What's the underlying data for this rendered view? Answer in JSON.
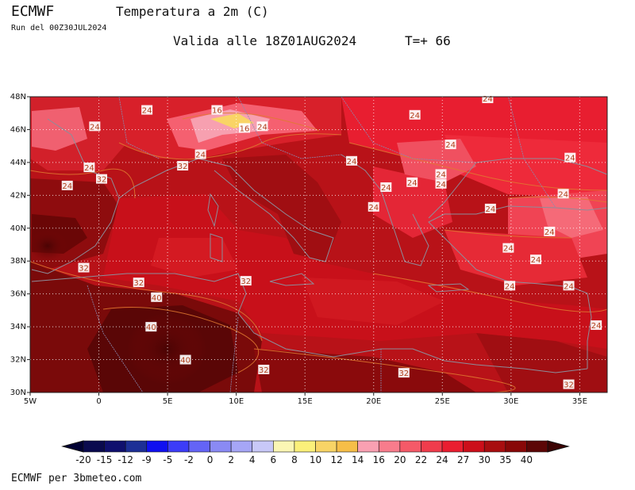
{
  "header": {
    "model": "ECMWF",
    "title": "Temperatura a 2m (C)",
    "run": "Run del 00Z30JUL2024",
    "valid": "Valida alle 18Z01AUG2024",
    "step": "T=+ 66"
  },
  "credit": "ECMWF per 3bmeteo.com",
  "map": {
    "lat_labels": [
      "48N",
      "46N",
      "44N",
      "42N",
      "40N",
      "38N",
      "36N",
      "34N",
      "32N",
      "30N"
    ],
    "lon_labels": [
      "5W",
      "0",
      "5E",
      "10E",
      "15E",
      "20E",
      "25E",
      "30E",
      "35E"
    ],
    "lat_values": [
      48,
      46,
      44,
      42,
      40,
      38,
      36,
      34,
      32,
      30
    ],
    "lon_values": [
      -5,
      0,
      5,
      10,
      15,
      20,
      25,
      30,
      35
    ],
    "extent": {
      "lon_min": -5,
      "lon_max": 37,
      "lat_min": 30,
      "lat_max": 48
    },
    "grid_lines": "dotted",
    "contour_labels": [
      {
        "text": "24",
        "lon": -0.3,
        "lat": 46.2
      },
      {
        "text": "24",
        "lon": 3.5,
        "lat": 47.2
      },
      {
        "text": "16",
        "lon": 8.6,
        "lat": 47.2
      },
      {
        "text": "16",
        "lon": 10.6,
        "lat": 46.1
      },
      {
        "text": "24",
        "lon": 11.9,
        "lat": 46.2
      },
      {
        "text": "24",
        "lon": 7.4,
        "lat": 44.5
      },
      {
        "text": "32",
        "lon": 6.1,
        "lat": 43.8
      },
      {
        "text": "24",
        "lon": -0.7,
        "lat": 43.7
      },
      {
        "text": "32",
        "lon": 0.2,
        "lat": 43.0
      },
      {
        "text": "24",
        "lon": -2.3,
        "lat": 42.6
      },
      {
        "text": "24",
        "lon": 23.0,
        "lat": 46.9
      },
      {
        "text": "24",
        "lon": 28.3,
        "lat": 47.9
      },
      {
        "text": "24",
        "lon": 25.6,
        "lat": 45.1
      },
      {
        "text": "24",
        "lon": 18.4,
        "lat": 44.1
      },
      {
        "text": "24",
        "lon": 34.3,
        "lat": 44.3
      },
      {
        "text": "24",
        "lon": 24.9,
        "lat": 43.3
      },
      {
        "text": "24",
        "lon": 24.9,
        "lat": 42.7
      },
      {
        "text": "24",
        "lon": 22.8,
        "lat": 42.8
      },
      {
        "text": "24",
        "lon": 20.9,
        "lat": 42.5
      },
      {
        "text": "24",
        "lon": 33.8,
        "lat": 42.1
      },
      {
        "text": "24",
        "lon": 20.0,
        "lat": 41.3
      },
      {
        "text": "24",
        "lon": 28.5,
        "lat": 41.2
      },
      {
        "text": "24",
        "lon": 32.8,
        "lat": 39.8
      },
      {
        "text": "24",
        "lon": 29.8,
        "lat": 38.8
      },
      {
        "text": "24",
        "lon": 31.8,
        "lat": 38.1
      },
      {
        "text": "32",
        "lon": -1.1,
        "lat": 37.6
      },
      {
        "text": "32",
        "lon": 2.9,
        "lat": 36.7
      },
      {
        "text": "32",
        "lon": 10.7,
        "lat": 36.8
      },
      {
        "text": "24",
        "lon": 29.9,
        "lat": 36.5
      },
      {
        "text": "24",
        "lon": 34.2,
        "lat": 36.5
      },
      {
        "text": "40",
        "lon": 4.2,
        "lat": 35.8
      },
      {
        "text": "40",
        "lon": 3.8,
        "lat": 34.0
      },
      {
        "text": "24",
        "lon": 36.2,
        "lat": 34.1
      },
      {
        "text": "40",
        "lon": 6.3,
        "lat": 32.0
      },
      {
        "text": "32",
        "lon": 12.0,
        "lat": 31.4
      },
      {
        "text": "32",
        "lon": 22.2,
        "lat": 31.2
      },
      {
        "text": "32",
        "lon": 34.2,
        "lat": 30.5
      }
    ]
  },
  "colorbar": {
    "levels": [
      "-20",
      "-15",
      "-12",
      "-9",
      "-5",
      "-2",
      "0",
      "2",
      "4",
      "6",
      "8",
      "10",
      "12",
      "14",
      "16",
      "20",
      "22",
      "24",
      "27",
      "30",
      "35",
      "40"
    ],
    "colors": [
      "#0a0a4e",
      "#10106e",
      "#1d2f96",
      "#1010f0",
      "#3c3cf8",
      "#6464f6",
      "#8a8af4",
      "#a6a6f6",
      "#c8c8f8",
      "#fbf6b4",
      "#fbf07a",
      "#f8d466",
      "#f6be48",
      "#f9a0b2",
      "#f87c8c",
      "#f55a68",
      "#f03c4c",
      "#ea1e30",
      "#cc0f1a",
      "#a80e10",
      "#880808",
      "#5c0606"
    ],
    "low_color": "#000033",
    "high_color": "#3c0404"
  }
}
